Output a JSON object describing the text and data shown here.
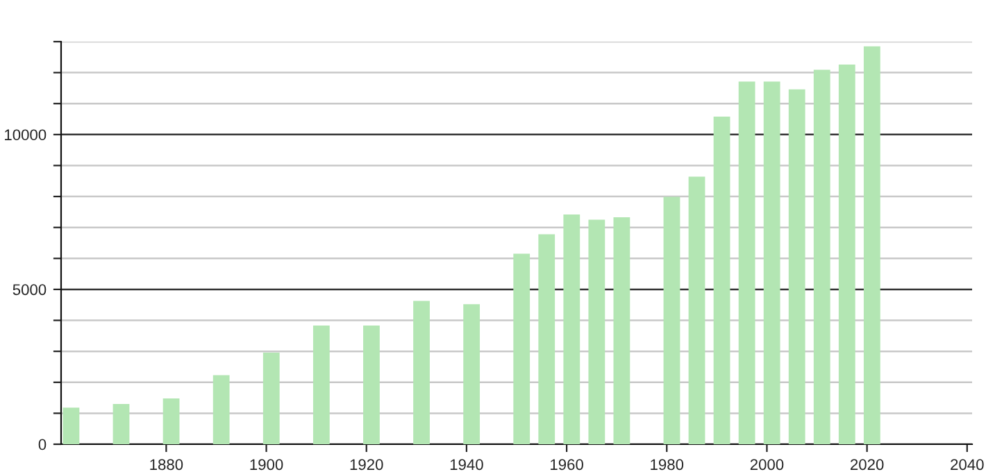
{
  "chart_data": {
    "type": "bar",
    "x": [
      1861,
      1871,
      1881,
      1891,
      1901,
      1911,
      1921,
      1931,
      1941,
      1951,
      1956,
      1961,
      1966,
      1971,
      1981,
      1986,
      1991,
      1996,
      2001,
      2006,
      2011,
      2016,
      2021
    ],
    "series": [
      {
        "color": "#b3e6b3",
        "values": [
          1180,
          1300,
          1480,
          2230,
          2960,
          3830,
          3830,
          4630,
          4520,
          6150,
          6780,
          7420,
          7250,
          7330,
          7990,
          8640,
          10580,
          11710,
          11710,
          11460,
          12090,
          12260,
          12850
        ]
      }
    ],
    "xlim": [
      1859,
      2041
    ],
    "xticks": [
      1880,
      1900,
      1920,
      1940,
      1960,
      1980,
      2000,
      2020,
      2040
    ],
    "ylim": [
      0,
      13000
    ],
    "yticks": [
      0,
      {
        "value": 1000,
        "label": null
      },
      {
        "value": 2000,
        "label": null
      },
      {
        "value": 3000,
        "label": null
      },
      {
        "value": 4000,
        "label": null
      },
      5000,
      {
        "value": 6000,
        "label": null
      },
      {
        "value": 7000,
        "label": null
      },
      {
        "value": 8000,
        "label": null
      },
      {
        "value": 9000,
        "label": null
      },
      10000,
      {
        "value": 11000,
        "label": null
      },
      {
        "value": 12000,
        "label": null
      },
      {
        "value": 13000,
        "label": null
      }
    ],
    "grid": "y"
  }
}
